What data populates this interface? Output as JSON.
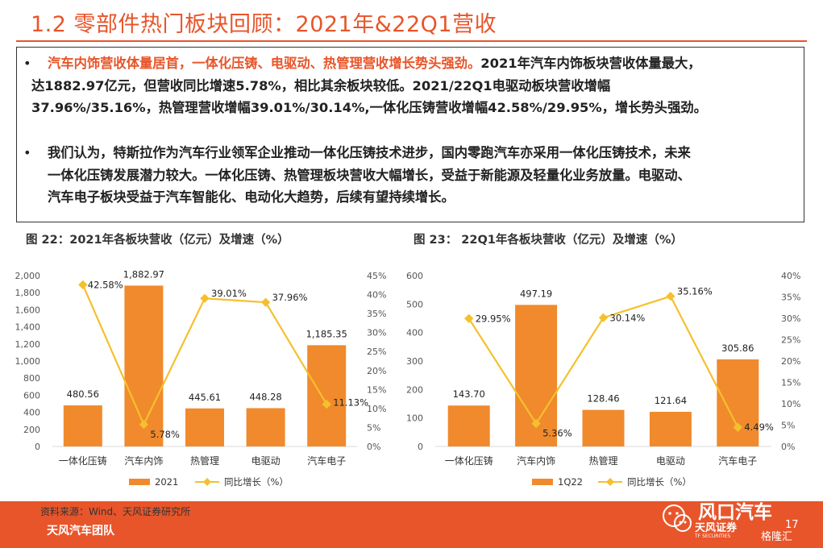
{
  "header": {
    "title": "1.2 零部件热门板块回顾：2021年&22Q1营收"
  },
  "summary": {
    "bullet1_lines": [
      "汽车内饰营收体量居首，一体化压铸、电驱动、热管理营收增长势头强劲。",
      "2021年汽车内饰板块营收体量最大，",
      "达1882.97亿元，但营收同比增速5.78%，相比其余板块较低。2021/22Q1电驱动板块营收增幅",
      "37.96%/35.16%，热管理营收增幅39.01%/30.14%,一体化压铸营收增幅42.58%/29.95%，增长势头强劲。"
    ],
    "bullet2_lines": [
      "我们认为，特斯拉作为汽车行业领军企业推动一体化压铸技术进步，国内零跑汽车亦采用一体化压铸技术，未来",
      "一体化压铸发展潜力较大。一体化压铸、热管理板块营收大幅增长，受益于新能源及轻量化业务放量。电驱动、",
      "汽车电子板块受益于汽车智能化、电动化大趋势，后续有望持续增长。"
    ]
  },
  "figures": {
    "fig22_title": "图 22：2021年各板块营收（亿元）及增速（%）",
    "fig23_title": "图 23： 22Q1年各板块营收（亿元）及增速（%）"
  },
  "chart_data": [
    {
      "type": "bar",
      "categories": [
        "一体化压铸",
        "汽车内饰",
        "热管理",
        "电驱动",
        "汽车电子"
      ],
      "series": [
        {
          "name": "2021",
          "type": "bar",
          "axis": "left",
          "values": [
            480.56,
            1882.97,
            445.61,
            448.28,
            1185.35
          ],
          "labels": [
            "480.56",
            "1,882.97",
            "445.61",
            "448.28",
            "1,185.35"
          ]
        },
        {
          "name": "同比增长（%）",
          "type": "line",
          "axis": "right",
          "values": [
            42.58,
            5.78,
            39.01,
            37.96,
            11.13
          ],
          "labels": [
            "42.58%",
            "5.78%",
            "39.01%",
            "37.96%",
            "11.13%"
          ]
        }
      ],
      "y_left": {
        "ylim": [
          0,
          2000
        ],
        "ticks": [
          "0",
          "200",
          "400",
          "600",
          "800",
          "1,000",
          "1,200",
          "1,400",
          "1,600",
          "1,800",
          "2,000"
        ]
      },
      "y_right": {
        "ylim": [
          0,
          45
        ],
        "ticks": [
          "0%",
          "5%",
          "10%",
          "15%",
          "20%",
          "25%",
          "30%",
          "35%",
          "40%",
          "45%"
        ]
      },
      "legend_position": "bottom",
      "colors": {
        "bar": "#f08a2c",
        "line": "#f5c02e"
      }
    },
    {
      "type": "bar",
      "categories": [
        "一体化压铸",
        "汽车内饰",
        "热管理",
        "电驱动",
        "汽车电子"
      ],
      "series": [
        {
          "name": "1Q22",
          "type": "bar",
          "axis": "left",
          "values": [
            143.7,
            497.19,
            128.46,
            121.64,
            305.86
          ],
          "labels": [
            "143.70",
            "497.19",
            "128.46",
            "121.64",
            "305.86"
          ]
        },
        {
          "name": "同比增长（%）",
          "type": "line",
          "axis": "right",
          "values": [
            29.95,
            5.36,
            30.14,
            35.16,
            4.49
          ],
          "labels": [
            "29.95%",
            "5.36%",
            "30.14%",
            "35.16%",
            "4.49%"
          ]
        }
      ],
      "y_left": {
        "ylim": [
          0,
          600
        ],
        "ticks": [
          "0",
          "100",
          "200",
          "300",
          "400",
          "500",
          "600"
        ]
      },
      "y_right": {
        "ylim": [
          0,
          40
        ],
        "ticks": [
          "0%",
          "5%",
          "10%",
          "15%",
          "20%",
          "25%",
          "30%",
          "35%",
          "40%"
        ]
      },
      "legend_position": "bottom",
      "colors": {
        "bar": "#f08a2c",
        "line": "#f5c02e"
      }
    }
  ],
  "footer": {
    "source": "资料来源：Wind、天风证券研究所",
    "team": "天风汽车团队",
    "page_number": "17",
    "logo_main": "风口汽车",
    "logo_sub": "天风证券",
    "logo_en": "TF SECURITIES",
    "watermark": "格隆汇"
  }
}
